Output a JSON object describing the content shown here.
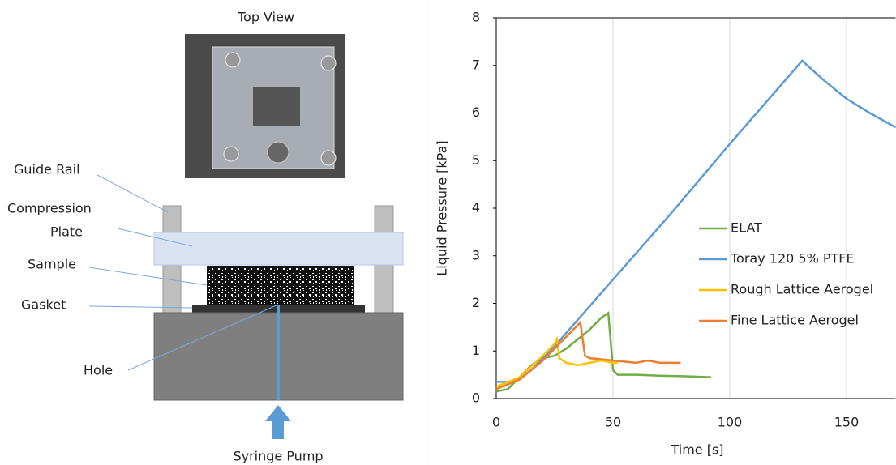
{
  "diagram": {
    "photo_title": "Top View",
    "labels": [
      "Guide Rail",
      "Compression",
      "Plate",
      "Sample",
      "Gasket",
      "Hole",
      "Syringe Pump"
    ]
  },
  "chart_data": {
    "type": "line",
    "xlabel": "Time [s]",
    "ylabel": "Liquid Pressure [kPa]",
    "xlim": [
      0,
      171
    ],
    "ylim": [
      0,
      8
    ],
    "xticks": [
      0,
      50,
      100,
      150
    ],
    "yticks": [
      0,
      1,
      2,
      3,
      4,
      5,
      6,
      7,
      8
    ],
    "grid": "x",
    "legend": "center-right",
    "series": [
      {
        "name": "ELAT",
        "color": "#70ad47",
        "x": [
          0,
          5,
          10,
          15,
          20,
          25,
          30,
          35,
          40,
          45,
          48,
          50,
          52,
          60,
          70,
          80,
          92
        ],
        "values": [
          0.15,
          0.2,
          0.45,
          0.7,
          0.85,
          0.9,
          1.05,
          1.25,
          1.45,
          1.7,
          1.8,
          0.6,
          0.5,
          0.5,
          0.48,
          0.47,
          0.45
        ]
      },
      {
        "name": "Toray 120 5% PTFE",
        "color": "#5b9bd5",
        "x": [
          0,
          5,
          10,
          15,
          20,
          25,
          50,
          75,
          100,
          131,
          140,
          150,
          160,
          171
        ],
        "values": [
          0.35,
          0.35,
          0.42,
          0.6,
          0.85,
          1.1,
          2.5,
          3.9,
          5.35,
          7.1,
          6.7,
          6.3,
          6.0,
          5.7
        ]
      },
      {
        "name": "Rough Lattice Aerogel",
        "color": "#ffc000",
        "x": [
          0,
          10,
          20,
          25,
          26,
          27,
          30,
          35,
          40,
          45,
          50,
          52
        ],
        "values": [
          0.25,
          0.45,
          0.9,
          1.15,
          1.25,
          0.85,
          0.75,
          0.7,
          0.75,
          0.8,
          0.75,
          0.75
        ]
      },
      {
        "name": "Fine Lattice Aerogel",
        "color": "#ed7d31",
        "x": [
          0,
          10,
          20,
          30,
          36,
          38,
          40,
          50,
          60,
          65,
          70,
          79
        ],
        "values": [
          0.2,
          0.4,
          0.8,
          1.3,
          1.6,
          0.9,
          0.85,
          0.8,
          0.75,
          0.8,
          0.75,
          0.75
        ]
      }
    ]
  }
}
